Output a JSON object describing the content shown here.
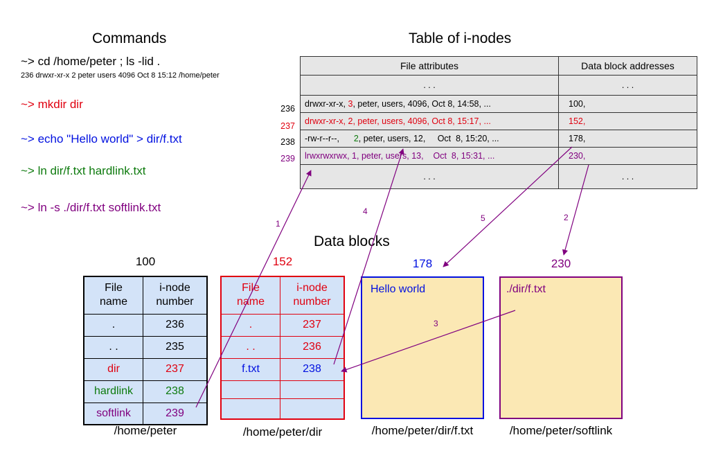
{
  "headings": {
    "commands": "Commands",
    "inode_table": "Table of i-nodes",
    "data_blocks": "Data blocks"
  },
  "commands": [
    {
      "text": "~>  cd /home/peter  ;   ls -lid .",
      "color": "#000000"
    },
    {
      "text": "~>  mkdir dir",
      "color": "#e0000f"
    },
    {
      "text": "~>  echo \"Hello world\" > dir/f.txt",
      "color": "#0010e0"
    },
    {
      "text": "~>  ln dir/f.txt    hardlink.txt",
      "color": "#0d7a0d"
    },
    {
      "text": "~>  ln -s ./dir/f.txt   softlink.txt",
      "color": "#80007f"
    }
  ],
  "command_output": "236 drwxr-xr-x 2 peter users 4096 Oct  8 15:12 /home/peter",
  "inode_table": {
    "headers": [
      "File attributes",
      "Data block addresses"
    ],
    "ellipsis": ". . .",
    "rows": [
      {
        "num": "236",
        "attrs_pre": "drwxr-xr-x, ",
        "links": "3",
        "attrs_post": ", peter, users, 4096, Oct  8, 14:58, ...",
        "addr": "100,",
        "color": "#000000",
        "links_color": "#e0000f"
      },
      {
        "num": "237",
        "attrs_pre": "drwxr-xr-x, ",
        "links": "2",
        "attrs_post": ", peter, users, 4096, Oct  8, 15:17, ...",
        "addr": "152,",
        "color": "#e0000f",
        "links_color": "#e0000f"
      },
      {
        "num": "238",
        "attrs_pre": "-rw-r--r--,      ",
        "links": "2",
        "attrs_post": ", peter, users, 12,     Oct  8, 15:20, ...",
        "addr": "178,",
        "color": "#000000",
        "links_color": "#0d7a0d"
      },
      {
        "num": "239",
        "attrs_pre": "lrwxrwxrwx, ",
        "links": "1",
        "attrs_post": ", peter, users, 13,    Oct  8, 15:31, ...",
        "addr": "230,",
        "color": "#80007f",
        "links_color": "#80007f"
      }
    ]
  },
  "blocks": {
    "b100": {
      "label": "100",
      "path": "/home/peter",
      "headers": [
        "File\nname",
        "i-node\nnumber"
      ],
      "rows": [
        {
          "name": ".",
          "num": "236",
          "color": "#000000"
        },
        {
          "name": ". .",
          "num": "235",
          "color": "#000000"
        },
        {
          "name": "dir",
          "num": "237",
          "color": "#e0000f"
        },
        {
          "name": "hardlink",
          "num": "238",
          "color": "#0d7a0d"
        },
        {
          "name": "softlink",
          "num": "239",
          "color": "#80007f"
        }
      ]
    },
    "b152": {
      "label": "152",
      "path": "/home/peter/dir",
      "headers": [
        "File\nname",
        "i-node\nnumber"
      ],
      "rows": [
        {
          "name": ".",
          "num": "237",
          "name_color": "#e0000f",
          "num_color": "#e0000f"
        },
        {
          "name": ". .",
          "num": "236",
          "name_color": "#e0000f",
          "num_color": "#e0000f"
        },
        {
          "name": "f.txt",
          "num": "238",
          "name_color": "#0010e0",
          "num_color": "#0010e0"
        },
        {
          "name": "",
          "num": "",
          "name_color": "#000000",
          "num_color": "#000000"
        },
        {
          "name": "",
          "num": "",
          "name_color": "#000000",
          "num_color": "#000000"
        }
      ]
    },
    "b178": {
      "label": "178",
      "content": "Hello world",
      "path": "/home/peter/dir/f.txt"
    },
    "b230": {
      "label": "230",
      "content": "./dir/f.txt",
      "path": "/home/peter/softlink"
    }
  },
  "arrow_labels": [
    "1",
    "2",
    "3",
    "4",
    "5"
  ],
  "colors": {
    "black": "#000000",
    "red": "#e0000f",
    "blue": "#0010e0",
    "green": "#0d7a0d",
    "purple": "#80007f",
    "inode_bg": "#e6e6e6",
    "dir_block_bg": "#d3e3f8",
    "file_block_bg": "#fbe8b4"
  }
}
